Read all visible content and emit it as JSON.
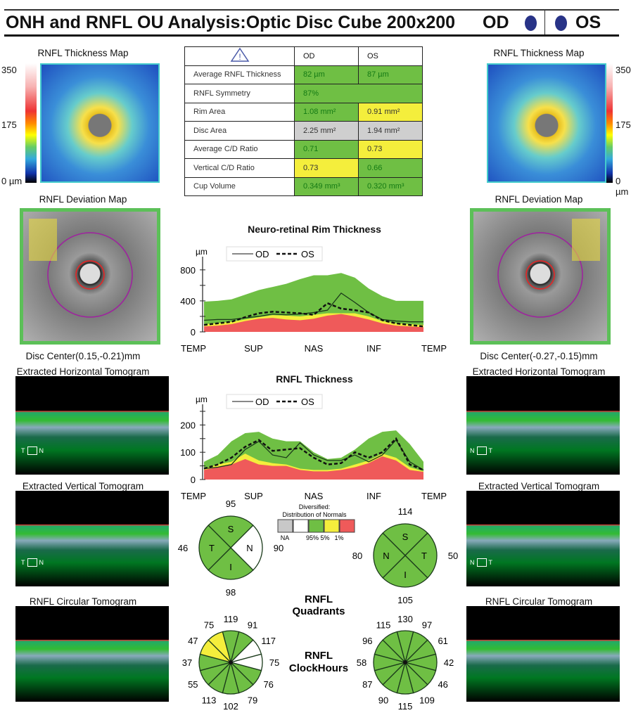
{
  "header": {
    "title": "ONH and RNFL OU Analysis:Optic Disc Cube 200x200",
    "od_label": "OD",
    "os_label": "OS",
    "eye_dot_color": "#283387"
  },
  "left": {
    "thickness_map_label": "RNFL Thickness Map",
    "scale": [
      "350",
      "175",
      "0 µm"
    ],
    "deviation_map_label": "RNFL Deviation Map",
    "disc_center": "Disc Center(0.15,-0.21)mm",
    "horizontal_label": "Extracted Horizontal Tomogram",
    "vertical_label": "Extracted Vertical Tomogram",
    "circular_label": "RNFL Circular Tomogram",
    "h_orient": [
      "T",
      "N"
    ],
    "v_orient": [
      "T",
      "N"
    ]
  },
  "right": {
    "thickness_map_label": "RNFL Thickness Map",
    "scale": [
      "350",
      "175",
      "0 µm"
    ],
    "deviation_map_label": "RNFL Deviation Map",
    "disc_center": "Disc Center(-0.27,-0.15)mm",
    "horizontal_label": "Extracted Horizontal Tomogram",
    "vertical_label": "Extracted Vertical Tomogram",
    "circular_label": "RNFL Circular Tomogram",
    "h_orient": [
      "N",
      "T"
    ],
    "v_orient": [
      "N",
      "T"
    ]
  },
  "table": {
    "warning_icon": "warning-triangle-icon",
    "columns": [
      "OD",
      "OS"
    ],
    "rows": [
      {
        "label": "Average RNFL Thickness",
        "od": "82 µm",
        "os": "87 µm",
        "od_status": "g",
        "os_status": "g"
      },
      {
        "label": "RNFL Symmetry",
        "od": "87%",
        "os": "",
        "od_status": "g",
        "os_status": "g"
      },
      {
        "label": "Rim Area",
        "od": "1.08 mm²",
        "os": "0.91 mm²",
        "od_status": "g",
        "os_status": "y"
      },
      {
        "label": "Disc Area",
        "od": "2.25 mm²",
        "os": "1.94 mm²",
        "od_status": "gr",
        "os_status": "gr"
      },
      {
        "label": "Average C/D Ratio",
        "od": "0.71",
        "os": "0.73",
        "od_status": "g",
        "os_status": "y"
      },
      {
        "label": "Vertical C/D Ratio",
        "od": "0.73",
        "os": "0.66",
        "od_status": "y",
        "os_status": "g"
      },
      {
        "label": "Cup Volume",
        "od": "0.349 mm³",
        "os": "0.320 mm³",
        "od_status": "g",
        "os_status": "g"
      }
    ]
  },
  "chart_data": [
    {
      "type": "area",
      "title": "Neuro-retinal Rim Thickness",
      "ylabel": "µm",
      "ylim": [
        0,
        880
      ],
      "yticks": [
        0,
        200,
        400,
        600,
        800
      ],
      "ytick_labels": [
        "0",
        "",
        "400",
        "",
        "800"
      ],
      "xtick_labels": [
        "TEMP",
        "SUP",
        "NAS",
        "INF",
        "TEMP"
      ],
      "bands": {
        "green_95": [
          390,
          400,
          420,
          480,
          540,
          580,
          620,
          680,
          730,
          730,
          760,
          700,
          560,
          460,
          400,
          400,
          400
        ],
        "yellow_5": [
          100,
          110,
          130,
          160,
          190,
          215,
          210,
          200,
          220,
          240,
          240,
          240,
          200,
          140,
          110,
          100,
          90
        ],
        "red_1": [
          70,
          80,
          100,
          140,
          170,
          180,
          160,
          150,
          170,
          210,
          230,
          200,
          160,
          110,
          80,
          70,
          60
        ]
      },
      "series": [
        {
          "name": "OD",
          "style": "solid",
          "values": [
            150,
            160,
            160,
            180,
            200,
            230,
            220,
            230,
            250,
            280,
            500,
            380,
            250,
            160,
            140,
            130,
            130
          ]
        },
        {
          "name": "OS",
          "style": "dashed",
          "values": [
            90,
            110,
            130,
            190,
            240,
            260,
            250,
            240,
            220,
            370,
            300,
            280,
            250,
            150,
            110,
            90,
            70
          ]
        }
      ]
    },
    {
      "type": "area",
      "title": "RNFL Thickness",
      "ylabel": "µm",
      "ylim": [
        0,
        250
      ],
      "yticks": [
        0,
        50,
        100,
        150,
        200,
        250
      ],
      "ytick_labels": [
        "0",
        "",
        "100",
        "",
        "200",
        ""
      ],
      "xtick_labels": [
        "TEMP",
        "SUP",
        "NAS",
        "INF",
        "TEMP"
      ],
      "bands": {
        "green_95": [
          65,
          90,
          140,
          170,
          175,
          150,
          140,
          140,
          100,
          75,
          80,
          110,
          150,
          175,
          180,
          130,
          65
        ],
        "yellow_5": [
          40,
          55,
          65,
          95,
          70,
          60,
          55,
          40,
          35,
          35,
          40,
          55,
          70,
          95,
          80,
          45,
          30
        ],
        "red_1": [
          35,
          45,
          55,
          75,
          55,
          50,
          50,
          35,
          30,
          30,
          35,
          45,
          60,
          85,
          70,
          35,
          28
        ]
      },
      "series": [
        {
          "name": "OD",
          "style": "solid",
          "values": [
            40,
            45,
            55,
            110,
            140,
            90,
            80,
            135,
            90,
            70,
            70,
            90,
            65,
            90,
            145,
            65,
            35
          ]
        },
        {
          "name": "OS",
          "style": "dashed",
          "values": [
            40,
            55,
            80,
            120,
            145,
            105,
            110,
            115,
            80,
            55,
            60,
            100,
            80,
            100,
            150,
            55,
            35
          ]
        }
      ]
    }
  ],
  "legend": {
    "title1": "Diversified:",
    "title2": "Distribution of Normals",
    "labels": [
      "NA",
      "95%",
      "5%",
      "1%"
    ],
    "colors": [
      "#c8c8c8",
      "#ffffff",
      "#6fbf44",
      "#f4ee3c",
      "#ef5a5a"
    ]
  },
  "quadrants": {
    "title1": "RNFL",
    "title2": "Quadrants",
    "od": {
      "S": "95",
      "N": "90",
      "I": "98",
      "T": "46",
      "colors": {
        "S": "g",
        "N": "w",
        "I": "g",
        "T": "g"
      }
    },
    "os": {
      "S": "114",
      "T": "50",
      "I": "105",
      "N": "80",
      "colors": {
        "S": "g",
        "T": "g",
        "I": "g",
        "N": "g"
      }
    }
  },
  "clockhours": {
    "title1": "RNFL",
    "title2": "ClockHours",
    "od": {
      "values": [
        "119",
        "91",
        "117",
        "75",
        "76",
        "79",
        "102",
        "113",
        "55",
        "37",
        "47",
        "75"
      ],
      "colors": [
        "g",
        "g",
        "w",
        "w",
        "g",
        "g",
        "g",
        "g",
        "g",
        "g",
        "y",
        "y"
      ]
    },
    "os": {
      "values": [
        "130",
        "97",
        "61",
        "42",
        "46",
        "109",
        "115",
        "90",
        "87",
        "58",
        "96",
        "115"
      ],
      "colors": [
        "g",
        "g",
        "g",
        "g",
        "g",
        "g",
        "g",
        "g",
        "g",
        "g",
        "g",
        "g"
      ]
    }
  },
  "colors": {
    "g": "#6fbf44",
    "y": "#f4ee3c",
    "w": "#ffffff",
    "red": "#ef5a5a",
    "gr": "#cfcfcf"
  }
}
